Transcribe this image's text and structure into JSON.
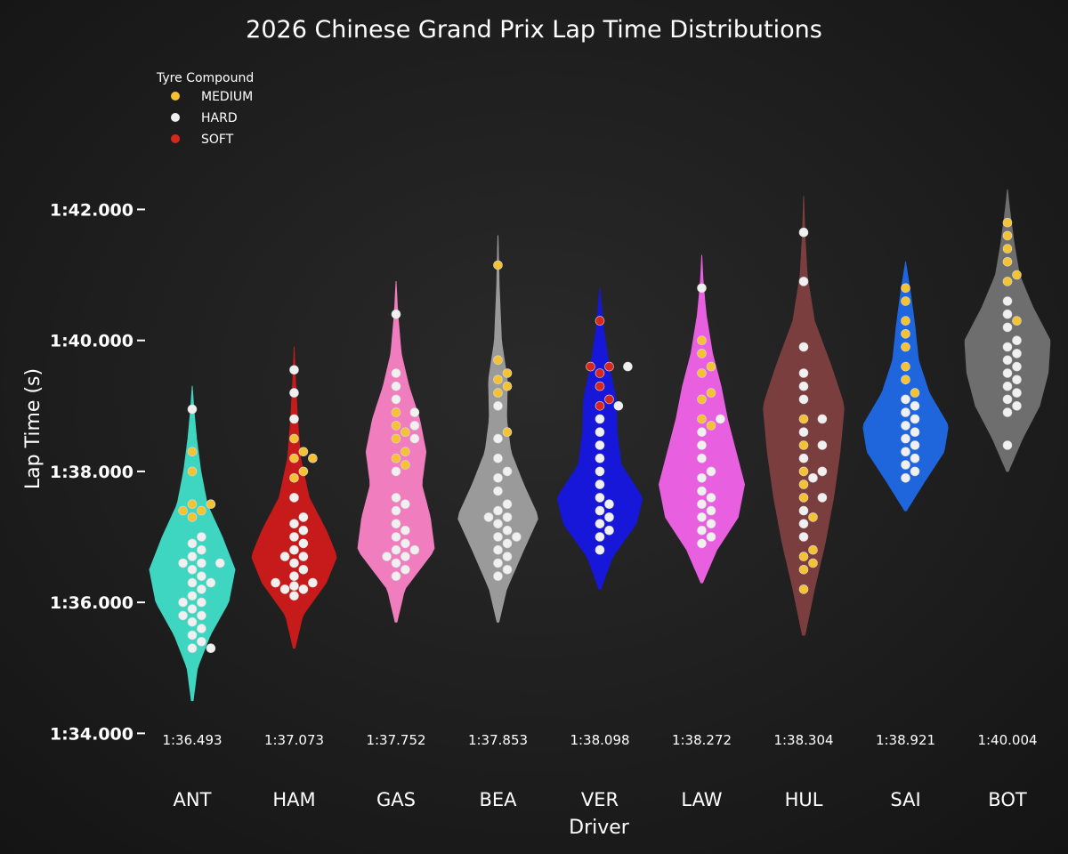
{
  "chart_data": {
    "type": "violin",
    "title": "2026 Chinese Grand Prix Lap Time Distributions",
    "xlabel": "Driver",
    "ylabel": "Lap Time (s)",
    "ylim": [
      93.0,
      103.5
    ],
    "yticks": [
      {
        "value": 94,
        "label": "1:34.000"
      },
      {
        "value": 96,
        "label": "1:36.000"
      },
      {
        "value": 98,
        "label": "1:38.000"
      },
      {
        "value": 100,
        "label": "1:40.000"
      },
      {
        "value": 102,
        "label": "1:42.000"
      }
    ],
    "legend": {
      "title": "Tyre Compound",
      "placement": "top-left",
      "items": [
        {
          "label": "MEDIUM",
          "color": "#f5c232"
        },
        {
          "label": "HARD",
          "color": "#f0f0f0"
        },
        {
          "label": "SOFT",
          "color": "#d8281e"
        }
      ]
    },
    "drivers": [
      {
        "code": "ANT",
        "color": "#3fd6c1",
        "median_label": "1:36.493",
        "median": 96.493,
        "min": 94.5,
        "max": 99.3,
        "laps": {
          "MEDIUM": [
            98.3,
            98.0,
            97.5,
            97.4,
            97.3,
            97.5,
            97.4
          ],
          "HARD": [
            98.95,
            97.0,
            96.9,
            96.8,
            96.7,
            96.6,
            96.6,
            96.6,
            96.5,
            96.4,
            96.3,
            96.3,
            96.2,
            96.1,
            96.0,
            96.0,
            95.9,
            95.8,
            95.8,
            95.7,
            95.6,
            95.5,
            95.4,
            95.3,
            95.3
          ]
        },
        "density": [
          [
            94.5,
            0.02
          ],
          [
            95.0,
            0.12
          ],
          [
            95.5,
            0.42
          ],
          [
            96.0,
            0.85
          ],
          [
            96.5,
            1.0
          ],
          [
            97.0,
            0.7
          ],
          [
            97.5,
            0.35
          ],
          [
            98.0,
            0.2
          ],
          [
            98.5,
            0.1
          ],
          [
            99.0,
            0.03
          ],
          [
            99.3,
            0.0
          ]
        ]
      },
      {
        "code": "HAM",
        "color": "#c71a1a",
        "median_label": "1:37.073",
        "median": 97.073,
        "min": 95.3,
        "max": 99.9,
        "laps": {
          "MEDIUM": [
            98.3,
            98.2,
            98.2,
            98.0,
            97.9,
            98.5
          ],
          "HARD": [
            99.55,
            99.2,
            98.8,
            97.6,
            97.3,
            97.2,
            97.1,
            97.0,
            96.9,
            96.8,
            96.7,
            96.7,
            96.6,
            96.5,
            96.4,
            96.3,
            96.3,
            96.2,
            96.2,
            96.1,
            96.25
          ]
        },
        "density": [
          [
            95.3,
            0.02
          ],
          [
            95.8,
            0.2
          ],
          [
            96.3,
            0.75
          ],
          [
            96.7,
            1.0
          ],
          [
            97.1,
            0.75
          ],
          [
            97.6,
            0.35
          ],
          [
            98.2,
            0.15
          ],
          [
            98.8,
            0.08
          ],
          [
            99.4,
            0.03
          ],
          [
            99.9,
            0.0
          ]
        ]
      },
      {
        "code": "GAS",
        "color": "#f07dbd",
        "median_label": "1:37.752",
        "median": 97.752,
        "min": 95.7,
        "max": 100.9,
        "laps": {
          "MEDIUM": [
            98.9,
            98.7,
            98.6,
            98.5,
            98.3,
            98.2,
            98.1
          ],
          "HARD": [
            100.4,
            99.5,
            99.3,
            99.1,
            98.9,
            98.7,
            98.5,
            98.0,
            97.6,
            97.5,
            97.4,
            97.2,
            97.1,
            97.0,
            96.9,
            96.8,
            96.8,
            96.7,
            96.7,
            96.6,
            96.5,
            96.4
          ]
        },
        "density": [
          [
            95.7,
            0.02
          ],
          [
            96.2,
            0.2
          ],
          [
            96.8,
            0.9
          ],
          [
            97.3,
            0.8
          ],
          [
            97.8,
            0.6
          ],
          [
            98.3,
            0.7
          ],
          [
            98.8,
            0.55
          ],
          [
            99.3,
            0.3
          ],
          [
            99.8,
            0.12
          ],
          [
            100.4,
            0.04
          ],
          [
            100.9,
            0.0
          ]
        ]
      },
      {
        "code": "BEA",
        "color": "#9a9a9a",
        "median_label": "1:37.853",
        "median": 97.853,
        "min": 95.7,
        "max": 101.6,
        "laps": {
          "MEDIUM": [
            101.15,
            99.7,
            99.5,
            99.4,
            99.3,
            99.2,
            98.6
          ],
          "HARD": [
            99.0,
            98.5,
            98.2,
            98.0,
            97.9,
            97.7,
            97.5,
            97.4,
            97.3,
            97.3,
            97.2,
            97.1,
            97.0,
            97.0,
            96.9,
            96.8,
            96.7,
            96.6,
            96.5,
            96.4
          ]
        },
        "density": [
          [
            95.7,
            0.02
          ],
          [
            96.2,
            0.2
          ],
          [
            96.8,
            0.6
          ],
          [
            97.3,
            0.95
          ],
          [
            97.8,
            0.6
          ],
          [
            98.3,
            0.3
          ],
          [
            98.8,
            0.2
          ],
          [
            99.4,
            0.22
          ],
          [
            100.0,
            0.08
          ],
          [
            100.8,
            0.03
          ],
          [
            101.6,
            0.0
          ]
        ]
      },
      {
        "code": "VER",
        "color": "#1717d9",
        "median_label": "1:38.098",
        "median": 98.098,
        "min": 96.2,
        "max": 100.8,
        "laps": {
          "SOFT": [
            100.3,
            99.6,
            99.6,
            99.5,
            99.3,
            99.1,
            99.0
          ],
          "HARD": [
            99.6,
            99.0,
            98.8,
            98.6,
            98.4,
            98.2,
            98.0,
            97.8,
            97.6,
            97.5,
            97.4,
            97.3,
            97.2,
            97.1,
            97.0,
            96.8
          ]
        },
        "density": [
          [
            96.2,
            0.02
          ],
          [
            96.7,
            0.3
          ],
          [
            97.2,
            0.85
          ],
          [
            97.6,
            1.0
          ],
          [
            98.1,
            0.5
          ],
          [
            98.6,
            0.4
          ],
          [
            99.1,
            0.38
          ],
          [
            99.6,
            0.22
          ],
          [
            100.2,
            0.08
          ],
          [
            100.8,
            0.0
          ]
        ]
      },
      {
        "code": "LAW",
        "color": "#e860e0",
        "median_label": "1:38.272",
        "median": 98.272,
        "min": 96.3,
        "max": 101.3,
        "laps": {
          "MEDIUM": [
            100.0,
            99.8,
            99.6,
            99.5,
            99.2,
            99.1,
            98.8,
            98.7
          ],
          "HARD": [
            100.8,
            98.8,
            98.6,
            98.4,
            98.2,
            98.0,
            97.9,
            97.7,
            97.6,
            97.5,
            97.4,
            97.3,
            97.2,
            97.1,
            97.0,
            96.9
          ]
        },
        "density": [
          [
            96.3,
            0.02
          ],
          [
            96.8,
            0.35
          ],
          [
            97.3,
            0.85
          ],
          [
            97.8,
            1.0
          ],
          [
            98.3,
            0.8
          ],
          [
            98.8,
            0.6
          ],
          [
            99.3,
            0.45
          ],
          [
            99.8,
            0.25
          ],
          [
            100.4,
            0.1
          ],
          [
            100.9,
            0.03
          ],
          [
            101.3,
            0.0
          ]
        ]
      },
      {
        "code": "HUL",
        "color": "#7a3e3e",
        "median_label": "1:38.304",
        "median": 98.304,
        "min": 95.5,
        "max": 102.2,
        "laps": {
          "MEDIUM": [
            98.8,
            98.4,
            98.0,
            97.8,
            97.6,
            97.3,
            96.8,
            96.7,
            96.6,
            96.5,
            96.2
          ],
          "HARD": [
            101.65,
            100.9,
            99.9,
            99.5,
            99.3,
            99.1,
            98.8,
            98.6,
            98.4,
            98.2,
            98.0,
            97.9,
            97.6,
            97.4,
            97.2,
            97.0
          ]
        },
        "density": [
          [
            95.5,
            0.03
          ],
          [
            96.2,
            0.25
          ],
          [
            96.9,
            0.5
          ],
          [
            97.6,
            0.7
          ],
          [
            98.3,
            0.85
          ],
          [
            99.0,
            0.95
          ],
          [
            99.6,
            0.65
          ],
          [
            100.3,
            0.25
          ],
          [
            101.0,
            0.08
          ],
          [
            101.6,
            0.03
          ],
          [
            102.2,
            0.0
          ]
        ]
      },
      {
        "code": "SAI",
        "color": "#1f66dd",
        "median_label": "1:38.921",
        "median": 98.921,
        "min": 97.4,
        "max": 101.2,
        "laps": {
          "MEDIUM": [
            100.8,
            100.6,
            100.3,
            100.1,
            99.9,
            99.6,
            99.4,
            99.2
          ],
          "HARD": [
            99.1,
            99.0,
            98.9,
            98.8,
            98.7,
            98.6,
            98.5,
            98.4,
            98.3,
            98.2,
            98.1,
            98.0,
            97.9
          ]
        },
        "density": [
          [
            97.4,
            0.02
          ],
          [
            97.8,
            0.4
          ],
          [
            98.3,
            0.9
          ],
          [
            98.7,
            1.0
          ],
          [
            99.2,
            0.55
          ],
          [
            99.7,
            0.3
          ],
          [
            100.2,
            0.22
          ],
          [
            100.7,
            0.12
          ],
          [
            101.2,
            0.0
          ]
        ]
      },
      {
        "code": "BOT",
        "color": "#6e6e6e",
        "median_label": "1:40.004",
        "median": 100.004,
        "min": 98.0,
        "max": 102.3,
        "laps": {
          "MEDIUM": [
            101.8,
            101.6,
            101.4,
            101.2,
            101.0,
            100.9,
            100.3
          ],
          "HARD": [
            100.6,
            100.4,
            100.2,
            100.0,
            99.9,
            99.8,
            99.7,
            99.6,
            99.5,
            99.4,
            99.3,
            99.2,
            99.1,
            99.0,
            98.9,
            98.4
          ]
        },
        "density": [
          [
            98.0,
            0.02
          ],
          [
            98.5,
            0.35
          ],
          [
            99.0,
            0.75
          ],
          [
            99.5,
            0.95
          ],
          [
            100.0,
            1.0
          ],
          [
            100.5,
            0.6
          ],
          [
            101.0,
            0.28
          ],
          [
            101.5,
            0.15
          ],
          [
            102.0,
            0.05
          ],
          [
            102.3,
            0.0
          ]
        ]
      }
    ]
  }
}
